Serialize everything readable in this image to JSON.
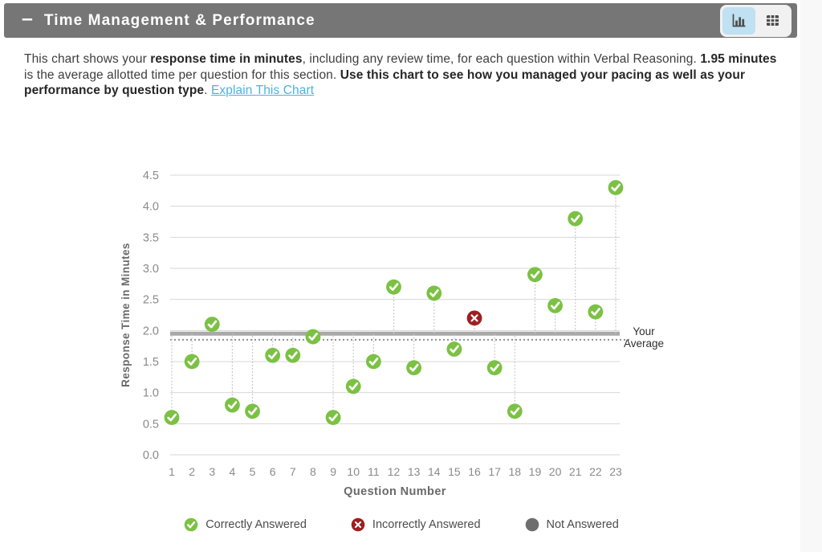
{
  "page": {
    "side_strip_color": "#f8f8f8"
  },
  "header": {
    "collapse_glyph": "–",
    "title": "Time Management & Performance",
    "bar_color": "#767676",
    "active_view": "chart",
    "views": [
      {
        "id": "chart",
        "icon": "bar-chart-icon",
        "active": true
      },
      {
        "id": "table",
        "icon": "table-icon",
        "active": false
      }
    ]
  },
  "description": {
    "segments": [
      {
        "text": "This chart shows your "
      },
      {
        "text": "response time in minutes",
        "bold": true
      },
      {
        "text": ", including any review time, for each question within Verbal Reasoning. "
      },
      {
        "text": "1.95 minutes",
        "bold": true
      },
      {
        "text": " is the average allotted time per question for this section. "
      },
      {
        "text": "Use this chart to see how you managed your pacing as well as your performance by question type",
        "bold": true
      },
      {
        "text": ". "
      },
      {
        "text": "Explain This Chart",
        "link": true
      }
    ],
    "link_color": "#4cb2e2"
  },
  "chart_data": {
    "type": "scatter",
    "xlabel": "Question Number",
    "ylabel": "Response Time in Minutes",
    "x": [
      1,
      2,
      3,
      4,
      5,
      6,
      7,
      8,
      9,
      10,
      11,
      12,
      13,
      14,
      15,
      16,
      17,
      18,
      19,
      20,
      21,
      22,
      23
    ],
    "values": [
      0.6,
      1.5,
      2.1,
      0.8,
      0.7,
      1.6,
      1.6,
      1.9,
      0.6,
      1.1,
      1.5,
      2.7,
      1.4,
      2.6,
      1.7,
      2.2,
      1.4,
      0.7,
      2.9,
      2.4,
      3.8,
      2.3,
      4.3
    ],
    "status": [
      "correct",
      "correct",
      "correct",
      "correct",
      "correct",
      "correct",
      "correct",
      "correct",
      "correct",
      "correct",
      "correct",
      "correct",
      "correct",
      "correct",
      "correct",
      "incorrect",
      "correct",
      "correct",
      "correct",
      "correct",
      "correct",
      "correct",
      "correct"
    ],
    "ylim": [
      0,
      4.5
    ],
    "ytick_labels": [
      "0.0",
      "0.5",
      "1.0",
      "1.5",
      "2.0",
      "2.5",
      "3.0",
      "3.5",
      "4.0",
      "4.5"
    ],
    "grid": true,
    "allotted_time_per_question": 1.95,
    "your_average": 1.85,
    "your_average_label": "Your Average",
    "legend_position": "bottom",
    "legend": [
      {
        "label": "Correctly Answered",
        "glyph": "check",
        "status": "correct"
      },
      {
        "label": "Incorrectly Answered",
        "glyph": "x",
        "status": "incorrect"
      },
      {
        "label": "Not Answered",
        "glyph": "dot",
        "status": "not_answered"
      }
    ],
    "colors": {
      "correct": "#7bc143",
      "incorrect": "#a01d20",
      "not_answered": "#6e6e6e",
      "gridline": "#d7d7d7",
      "stem": "#c9c9c9",
      "allotted_line": "#a9a9a9",
      "average_line": "#8f8f8f",
      "tick_text": "#8a8a8a",
      "axis_title_text": "#6a6a6a"
    }
  }
}
